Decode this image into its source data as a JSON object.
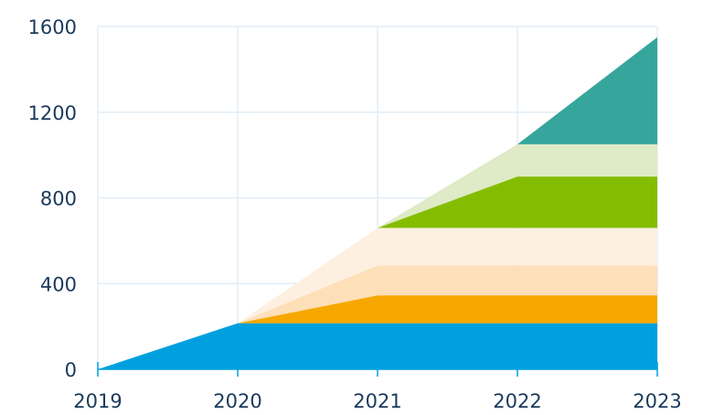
{
  "chart_data": {
    "type": "area",
    "stacked": true,
    "x": [
      2019,
      2020,
      2021,
      2022,
      2023
    ],
    "xlim": [
      2019,
      2023
    ],
    "ylim": [
      0,
      1600
    ],
    "x_ticks": [
      "2019",
      "2020",
      "2021",
      "2022",
      "2023"
    ],
    "y_ticks": [
      "0",
      "400",
      "800",
      "1200",
      "1600"
    ],
    "grid": true,
    "series": [
      {
        "color": "#00a0df",
        "values": [
          0,
          215,
          215,
          215,
          215
        ]
      },
      {
        "color": "#f6a800",
        "values": [
          0,
          0,
          130,
          130,
          130
        ]
      },
      {
        "color": "#fddfb8",
        "values": [
          0,
          0,
          140,
          140,
          140
        ]
      },
      {
        "color": "#fef0e1",
        "values": [
          0,
          0,
          175,
          175,
          175
        ]
      },
      {
        "color": "#84bd00",
        "values": [
          0,
          0,
          0,
          240,
          240
        ]
      },
      {
        "color": "#dfeac6",
        "values": [
          0,
          0,
          0,
          150,
          150
        ]
      },
      {
        "color": "#36a69c",
        "values": [
          0,
          0,
          0,
          0,
          500
        ]
      }
    ],
    "axis_color": "#00a0df",
    "grid_color": "#e3edf5",
    "label_color": "#1a3a5c"
  }
}
